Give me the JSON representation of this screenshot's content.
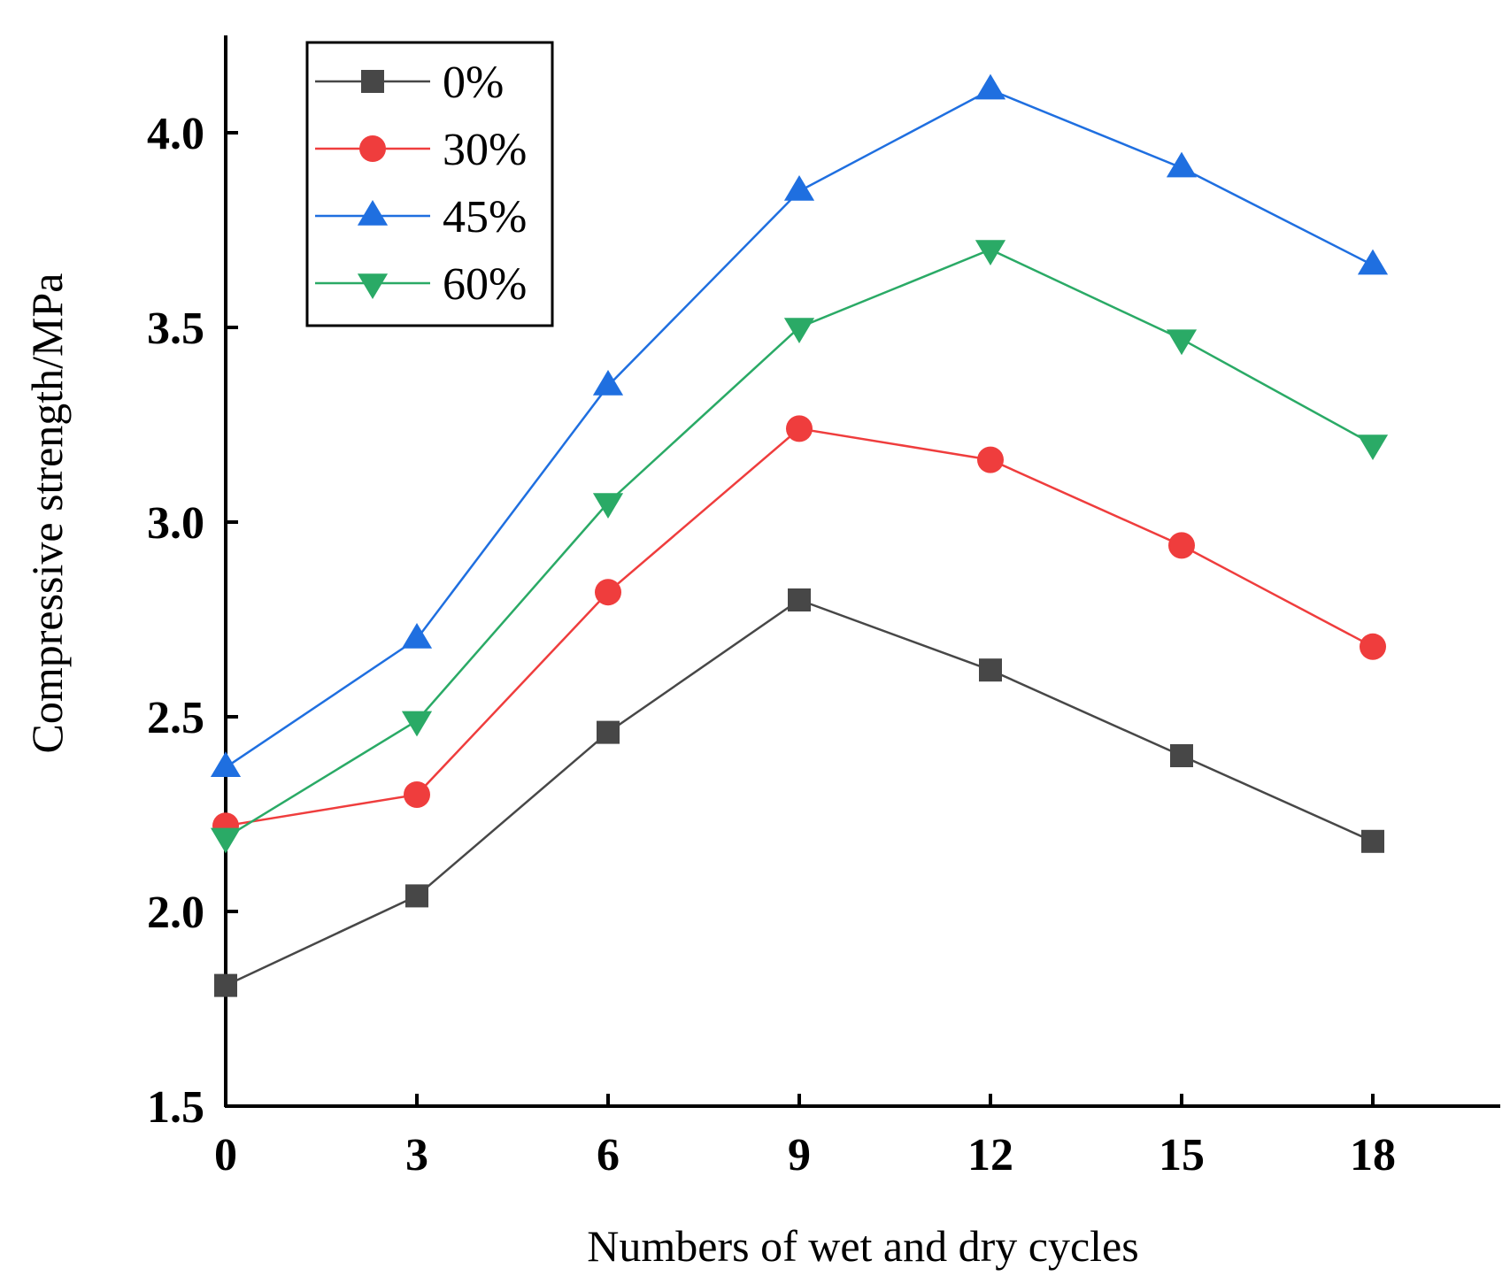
{
  "chart_data": {
    "type": "line",
    "title": "",
    "xlabel": "Numbers of wet and dry cycles",
    "ylabel": "Compressive strength/MPa",
    "x": [
      0,
      3,
      6,
      9,
      12,
      15,
      18
    ],
    "xlim": [
      0,
      20
    ],
    "ylim": [
      1.5,
      4.25
    ],
    "xticks": [
      "0",
      "3",
      "6",
      "9",
      "12",
      "15",
      "18"
    ],
    "yticks": [
      "1.5",
      "2.0",
      "2.5",
      "3.0",
      "3.5",
      "4.0"
    ],
    "grid": false,
    "legend_position": "top-left",
    "series": [
      {
        "name": "0%",
        "marker": "square",
        "color": "#474747",
        "values": [
          1.81,
          2.04,
          2.46,
          2.8,
          2.62,
          2.4,
          2.18
        ]
      },
      {
        "name": "30%",
        "marker": "circle",
        "color": "#ef3d3d",
        "values": [
          2.22,
          2.3,
          2.82,
          3.24,
          3.16,
          2.94,
          2.68
        ]
      },
      {
        "name": "45%",
        "marker": "triangle-up",
        "color": "#1f6fe0",
        "values": [
          2.37,
          2.7,
          3.35,
          3.85,
          4.11,
          3.91,
          3.66
        ]
      },
      {
        "name": "60%",
        "marker": "triangle-down",
        "color": "#2aaa66",
        "values": [
          2.19,
          2.49,
          3.05,
          3.5,
          3.7,
          3.47,
          3.2
        ]
      }
    ]
  }
}
